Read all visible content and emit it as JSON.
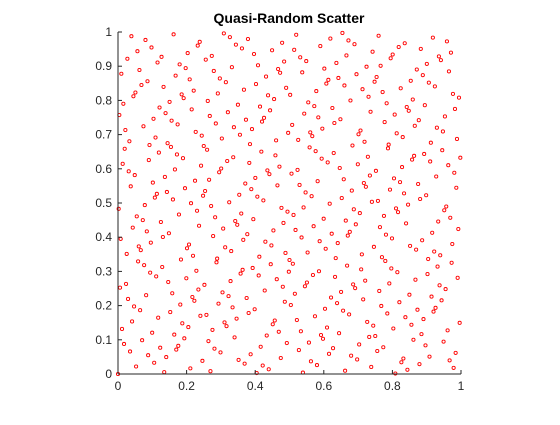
{
  "chart_data": {
    "type": "scatter",
    "title": "Quasi-Random Scatter",
    "xlabel": "",
    "ylabel": "",
    "xlim": [
      0,
      1
    ],
    "ylim": [
      0,
      1
    ],
    "xticks": [
      "0",
      "0.2",
      "0.4",
      "0.6",
      "0.8",
      "1"
    ],
    "yticks": [
      "0",
      "0.1",
      "0.2",
      "0.3",
      "0.4",
      "0.5",
      "0.6",
      "0.7",
      "0.8",
      "0.9",
      "1"
    ],
    "grid": false,
    "legend": "none",
    "marker": "circle",
    "color": "#ff0000",
    "point_count": 512
  }
}
